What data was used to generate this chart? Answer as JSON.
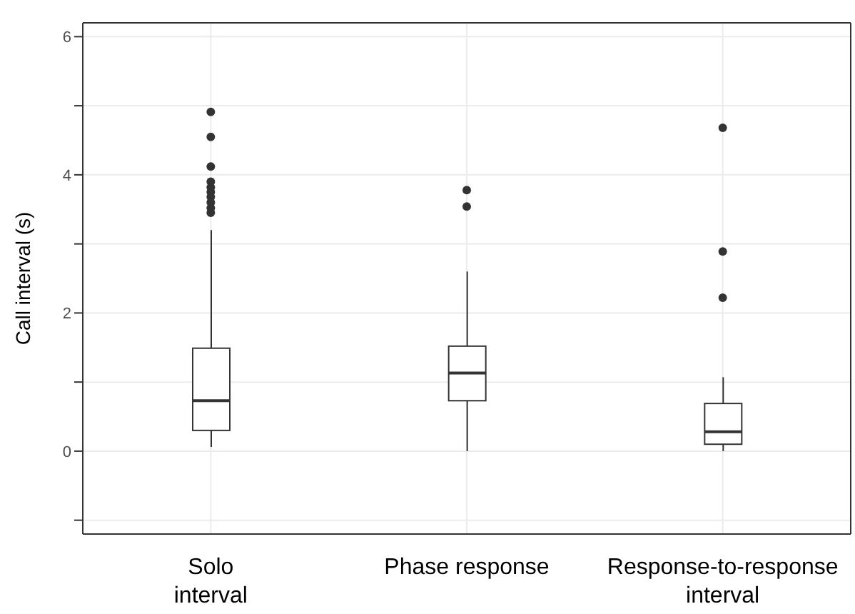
{
  "chart_data": {
    "type": "box",
    "ylabel": "Call interval (s)",
    "categories": [
      "Solo\ninterval",
      "Phase response",
      "Response-to-response\ninterval"
    ],
    "color": "#333333",
    "boxes": [
      {
        "low": 0.06,
        "q1": 0.3,
        "median": 0.73,
        "q3": 1.49,
        "high": 3.2,
        "outliers": [
          4.91,
          4.55,
          4.12,
          3.9,
          3.82,
          3.75,
          3.68,
          3.6,
          3.52,
          3.45
        ]
      },
      {
        "low": 0.0,
        "q1": 0.73,
        "median": 1.13,
        "q3": 1.52,
        "high": 2.6,
        "outliers": [
          3.78,
          3.54
        ]
      },
      {
        "low": 0.0,
        "q1": 0.1,
        "median": 0.28,
        "q3": 0.69,
        "high": 1.07,
        "outliers": [
          4.68,
          2.89,
          2.22
        ]
      }
    ],
    "ylim": [
      -1.2,
      6.2
    ],
    "yticks": [
      {
        "value": -1,
        "label": null
      },
      0,
      {
        "value": 1,
        "label": null
      },
      2,
      {
        "value": 3,
        "label": null
      },
      4,
      {
        "value": 5,
        "label": null
      },
      6
    ],
    "grid": true
  }
}
